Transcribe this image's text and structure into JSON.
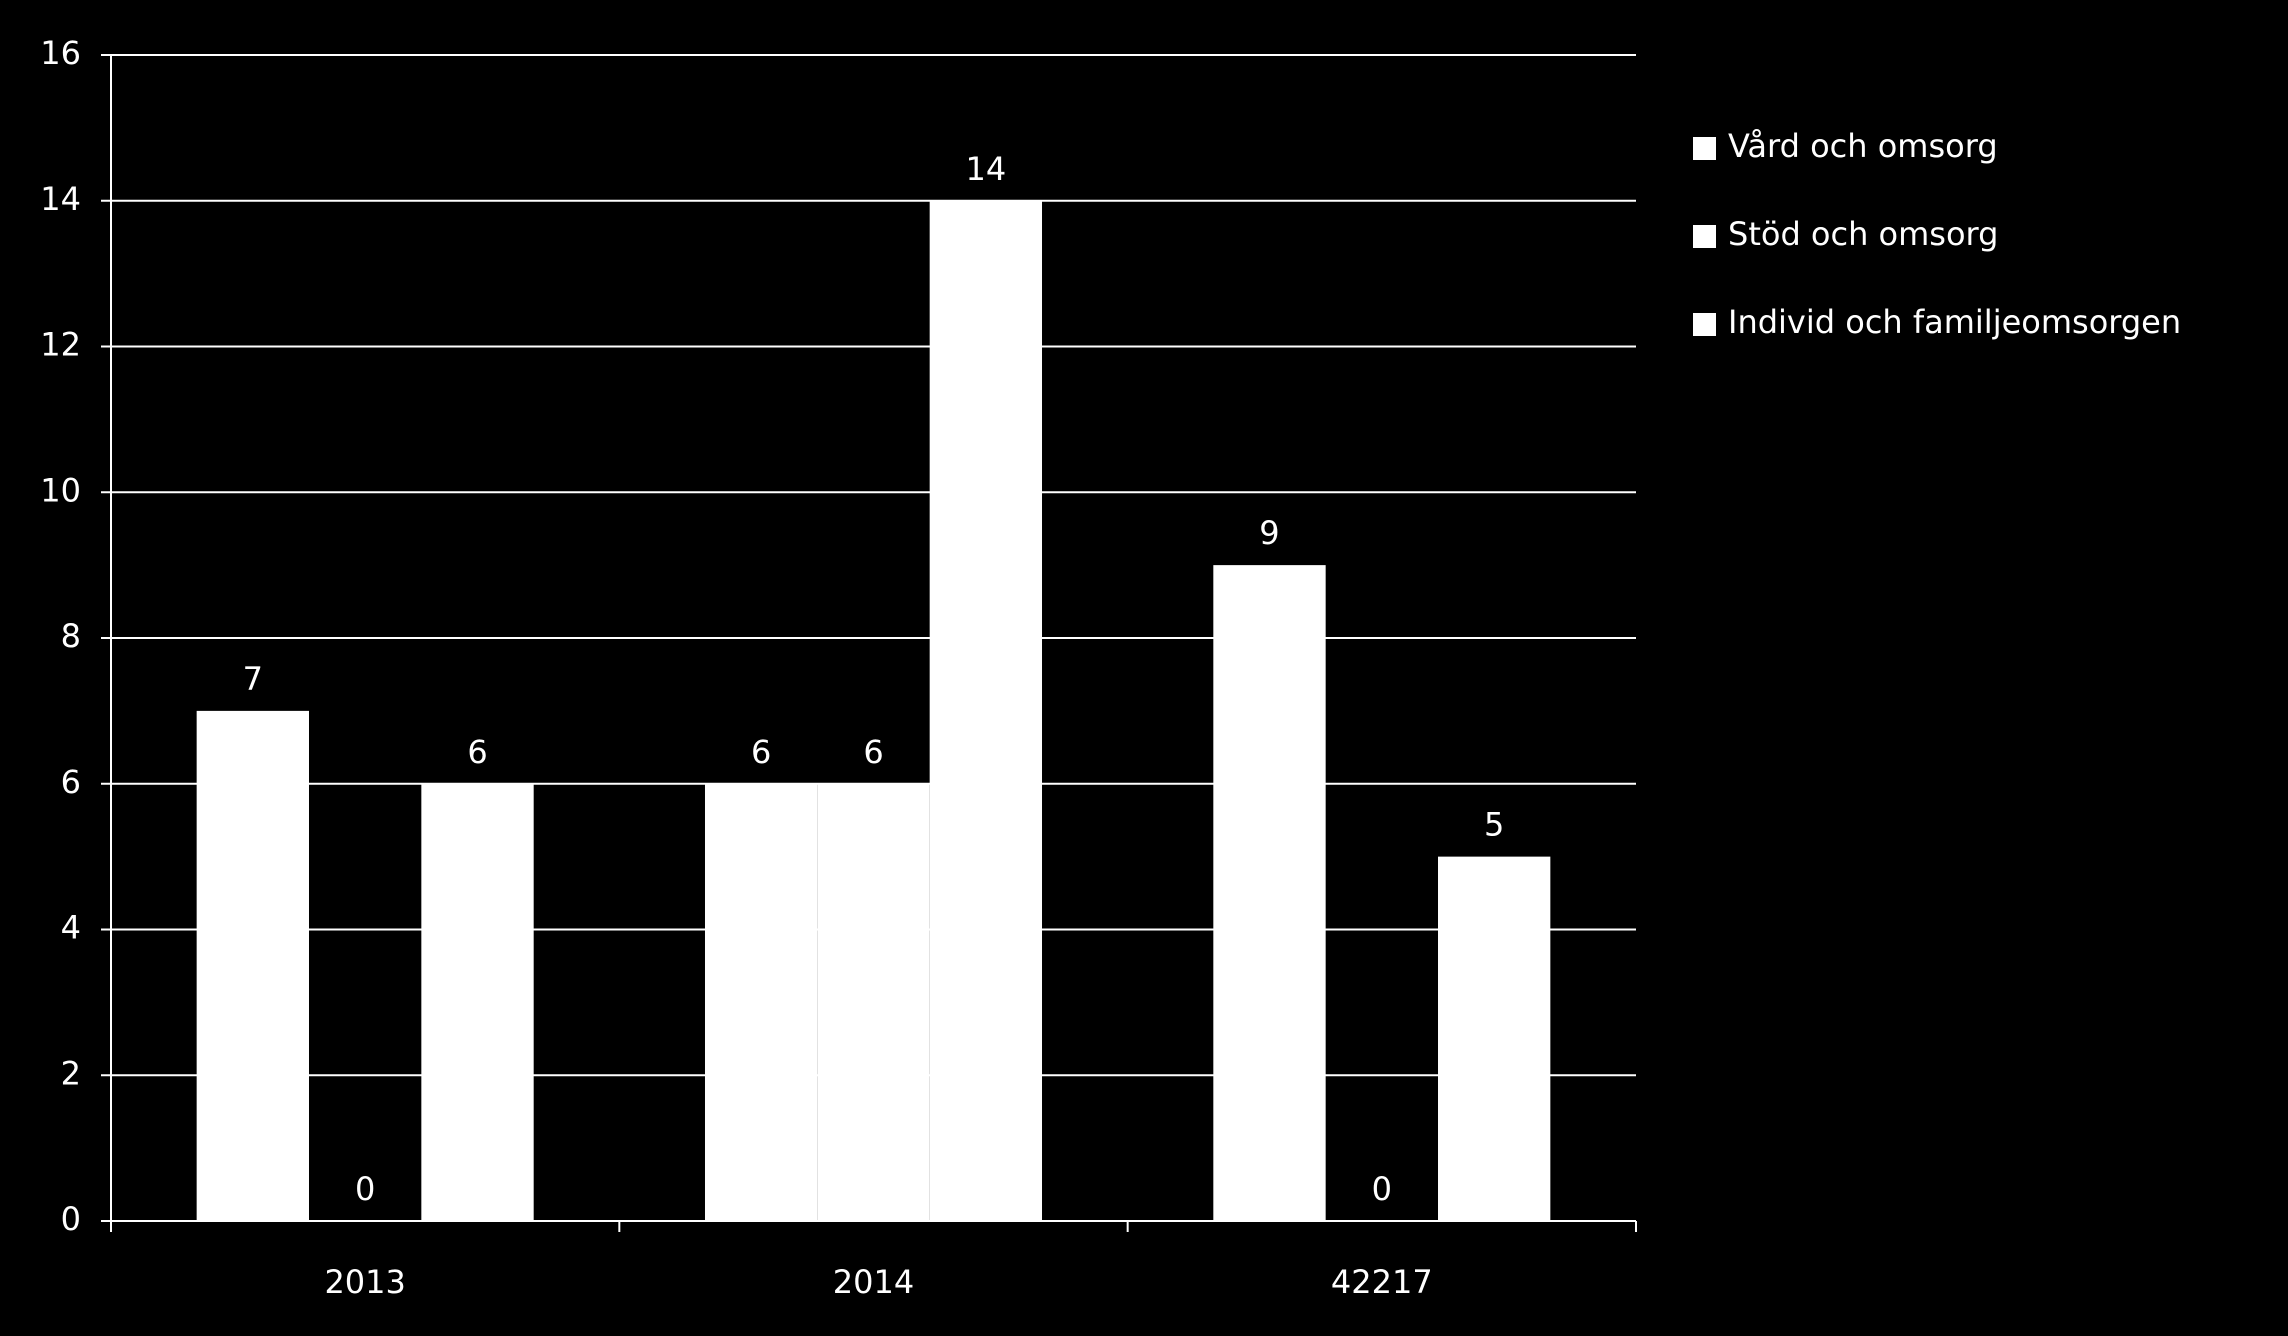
{
  "chart_data": {
    "type": "bar",
    "categories": [
      "2013",
      "2014",
      "42217"
    ],
    "series": [
      {
        "name": "Vård och omsorg",
        "color": "#ffffff",
        "values": [
          7,
          6,
          9
        ]
      },
      {
        "name": "Stöd och omsorg",
        "color": "#ffffff",
        "values": [
          0,
          6,
          0
        ]
      },
      {
        "name": "Individ och familjeomsorgen",
        "color": "#ffffff",
        "values": [
          6,
          14,
          5
        ]
      }
    ],
    "ylim": [
      0,
      16
    ],
    "yticks": [
      0,
      2,
      4,
      6,
      8,
      10,
      12,
      14,
      16
    ],
    "grid": true,
    "legend": "right",
    "data_labels": true
  }
}
